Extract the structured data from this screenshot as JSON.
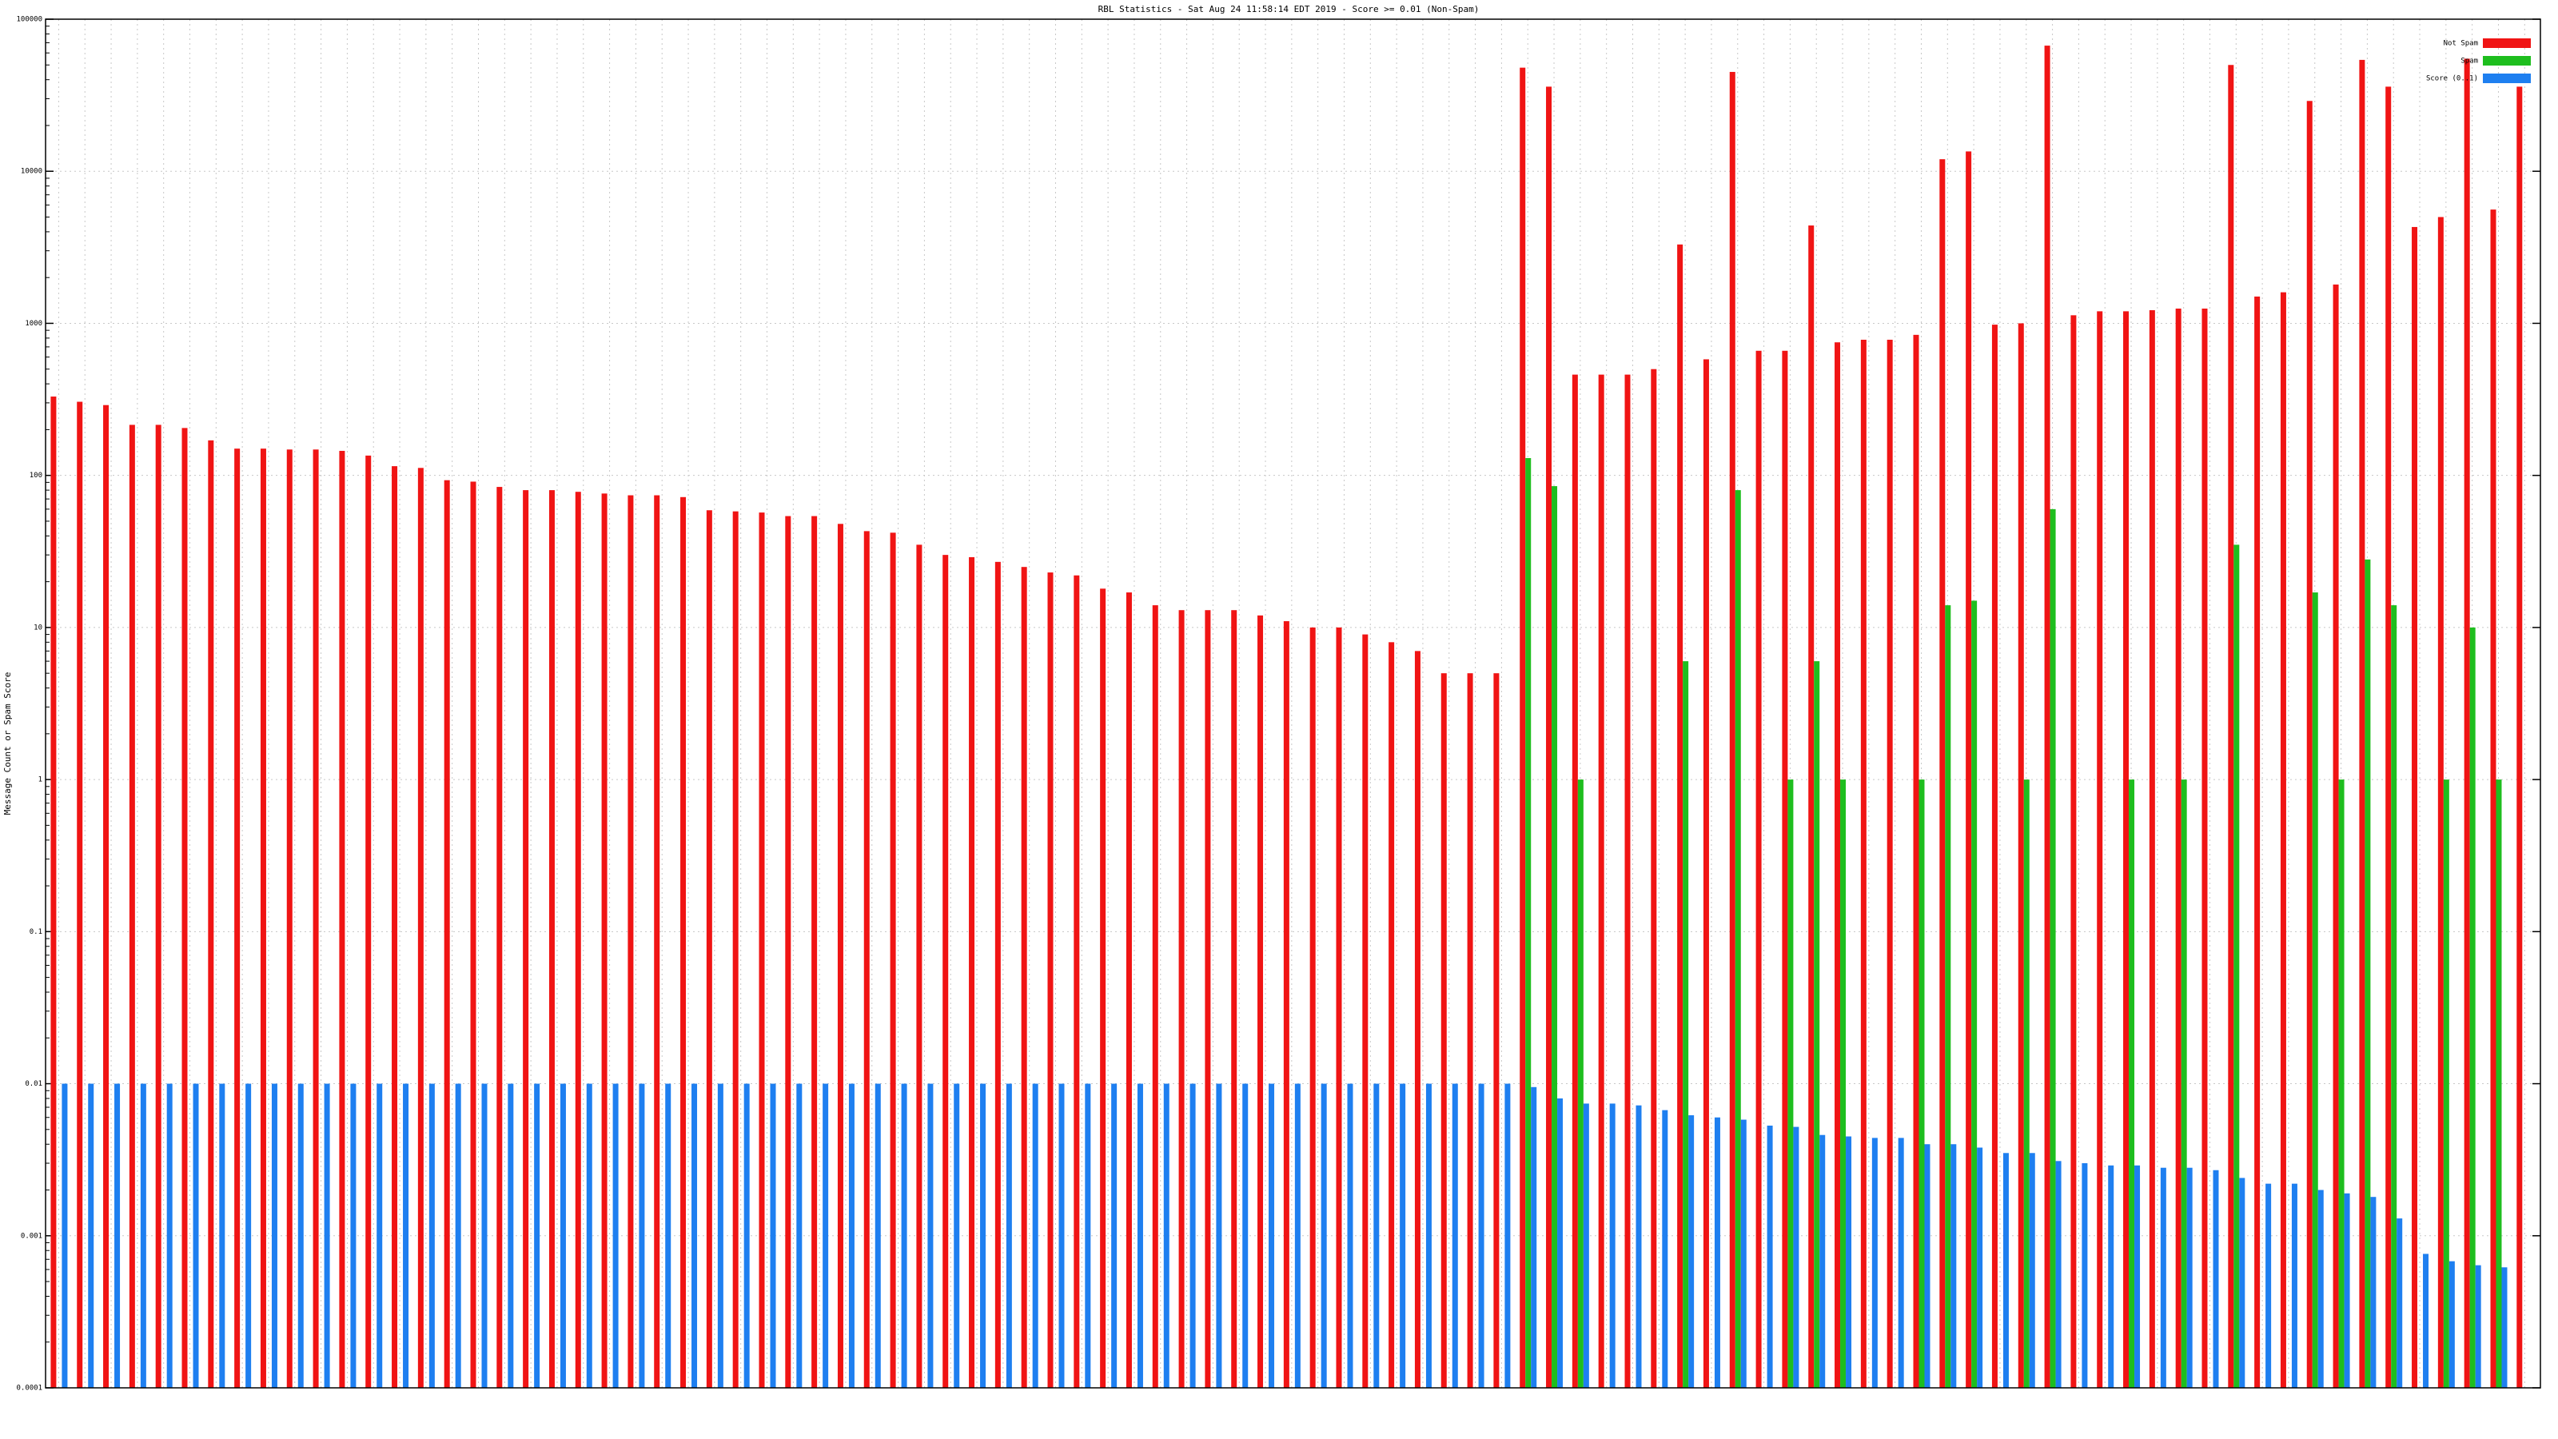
{
  "chart_data": {
    "type": "bar",
    "title": "RBL Statistics - Sat Aug 24 11:58:14 EDT 2019 - Score >= 0.01 (Non-Spam)",
    "y_label": "Message Count or Spam Score",
    "log_y": true,
    "grid": true,
    "legend": "top-right",
    "ylim": [
      0.0001,
      100000
    ],
    "yticks": [
      0.0001,
      0.001,
      0.01,
      0.1,
      1,
      10,
      100,
      1000,
      10000,
      100000
    ],
    "categories": [
      null,
      null,
      null,
      null,
      null,
      null,
      null,
      null,
      null,
      null,
      null,
      null,
      null,
      null,
      null,
      null,
      null,
      null,
      null,
      null,
      null,
      null,
      null,
      null,
      null,
      null,
      null,
      null,
      null,
      null,
      null,
      null,
      null,
      null,
      null,
      null,
      null,
      null,
      null,
      null,
      null,
      null,
      null,
      null,
      null,
      null,
      null,
      null,
      null,
      null,
      null,
      null,
      null,
      null,
      null,
      null,
      null,
      null,
      null,
      null,
      null,
      null,
      null,
      null,
      null,
      null,
      null,
      null,
      null,
      null,
      null,
      null,
      null,
      null,
      null,
      null,
      null,
      null,
      null,
      null,
      null,
      null,
      null,
      null,
      null,
      null,
      null,
      null,
      null,
      null,
      null,
      null,
      null,
      null,
      null
    ],
    "series": [
      {
        "name": "Not Spam",
        "color": "#f01414",
        "values": [
          330,
          305,
          290,
          215,
          215,
          205,
          170,
          150,
          150,
          148,
          148,
          145,
          135,
          115,
          112,
          93,
          91,
          84,
          80,
          80,
          78,
          76,
          74,
          74,
          72,
          59,
          58,
          57,
          54,
          54,
          48,
          43,
          42,
          35,
          30,
          29,
          27,
          25,
          23,
          22,
          18,
          17,
          14,
          13,
          13,
          13,
          12,
          11,
          10,
          10,
          9,
          8,
          7,
          5,
          5,
          5,
          48000,
          36000,
          460,
          460,
          460,
          500,
          3300,
          580,
          45000,
          660,
          660,
          4400,
          750,
          780,
          780,
          840,
          12000,
          13500,
          980,
          1000,
          67000,
          1130,
          1200,
          1200,
          1220,
          1250,
          1250,
          50000,
          1500,
          1600,
          29000,
          1800,
          54000,
          36000,
          4300,
          5000,
          55000,
          5600,
          36000
        ]
      },
      {
        "name": "Spam",
        "color": "#1ebe1e",
        "values": [
          null,
          null,
          null,
          null,
          null,
          null,
          null,
          null,
          null,
          null,
          null,
          null,
          null,
          null,
          null,
          null,
          null,
          null,
          null,
          null,
          null,
          null,
          null,
          null,
          null,
          null,
          null,
          null,
          null,
          null,
          null,
          null,
          null,
          null,
          null,
          null,
          null,
          null,
          null,
          null,
          null,
          null,
          null,
          null,
          null,
          null,
          null,
          null,
          null,
          null,
          null,
          null,
          null,
          null,
          null,
          null,
          130,
          85,
          1,
          null,
          null,
          null,
          6,
          null,
          80,
          null,
          1,
          6,
          1,
          null,
          null,
          1,
          14,
          15,
          null,
          1,
          60,
          null,
          null,
          1,
          null,
          1,
          null,
          35,
          null,
          null,
          17,
          1,
          28,
          14,
          null,
          1,
          10,
          1,
          null
        ]
      },
      {
        "name": "Score (0..1)",
        "color": "#1e7ff0",
        "values": [
          0.01,
          0.01,
          0.01,
          0.01,
          0.01,
          0.01,
          0.01,
          0.01,
          0.01,
          0.01,
          0.01,
          0.01,
          0.01,
          0.01,
          0.01,
          0.01,
          0.01,
          0.01,
          0.01,
          0.01,
          0.01,
          0.01,
          0.01,
          0.01,
          0.01,
          0.01,
          0.01,
          0.01,
          0.01,
          0.01,
          0.01,
          0.01,
          0.01,
          0.01,
          0.01,
          0.01,
          0.01,
          0.01,
          0.01,
          0.01,
          0.01,
          0.01,
          0.01,
          0.01,
          0.01,
          0.01,
          0.01,
          0.01,
          0.01,
          0.01,
          0.01,
          0.01,
          0.01,
          0.01,
          0.01,
          0.01,
          0.0095,
          0.008,
          0.0074,
          0.0074,
          0.0072,
          0.0067,
          0.0062,
          0.006,
          0.0058,
          0.0053,
          0.0052,
          0.0046,
          0.0045,
          0.0044,
          0.0044,
          0.004,
          0.004,
          0.0038,
          0.0035,
          0.0035,
          0.0031,
          0.003,
          0.0029,
          0.0029,
          0.0028,
          0.0028,
          0.0027,
          0.0024,
          0.0022,
          0.0022,
          0.002,
          0.0019,
          0.0018,
          0.0013,
          0.00076,
          0.00068,
          0.00064,
          0.00062,
          null
        ]
      }
    ]
  }
}
